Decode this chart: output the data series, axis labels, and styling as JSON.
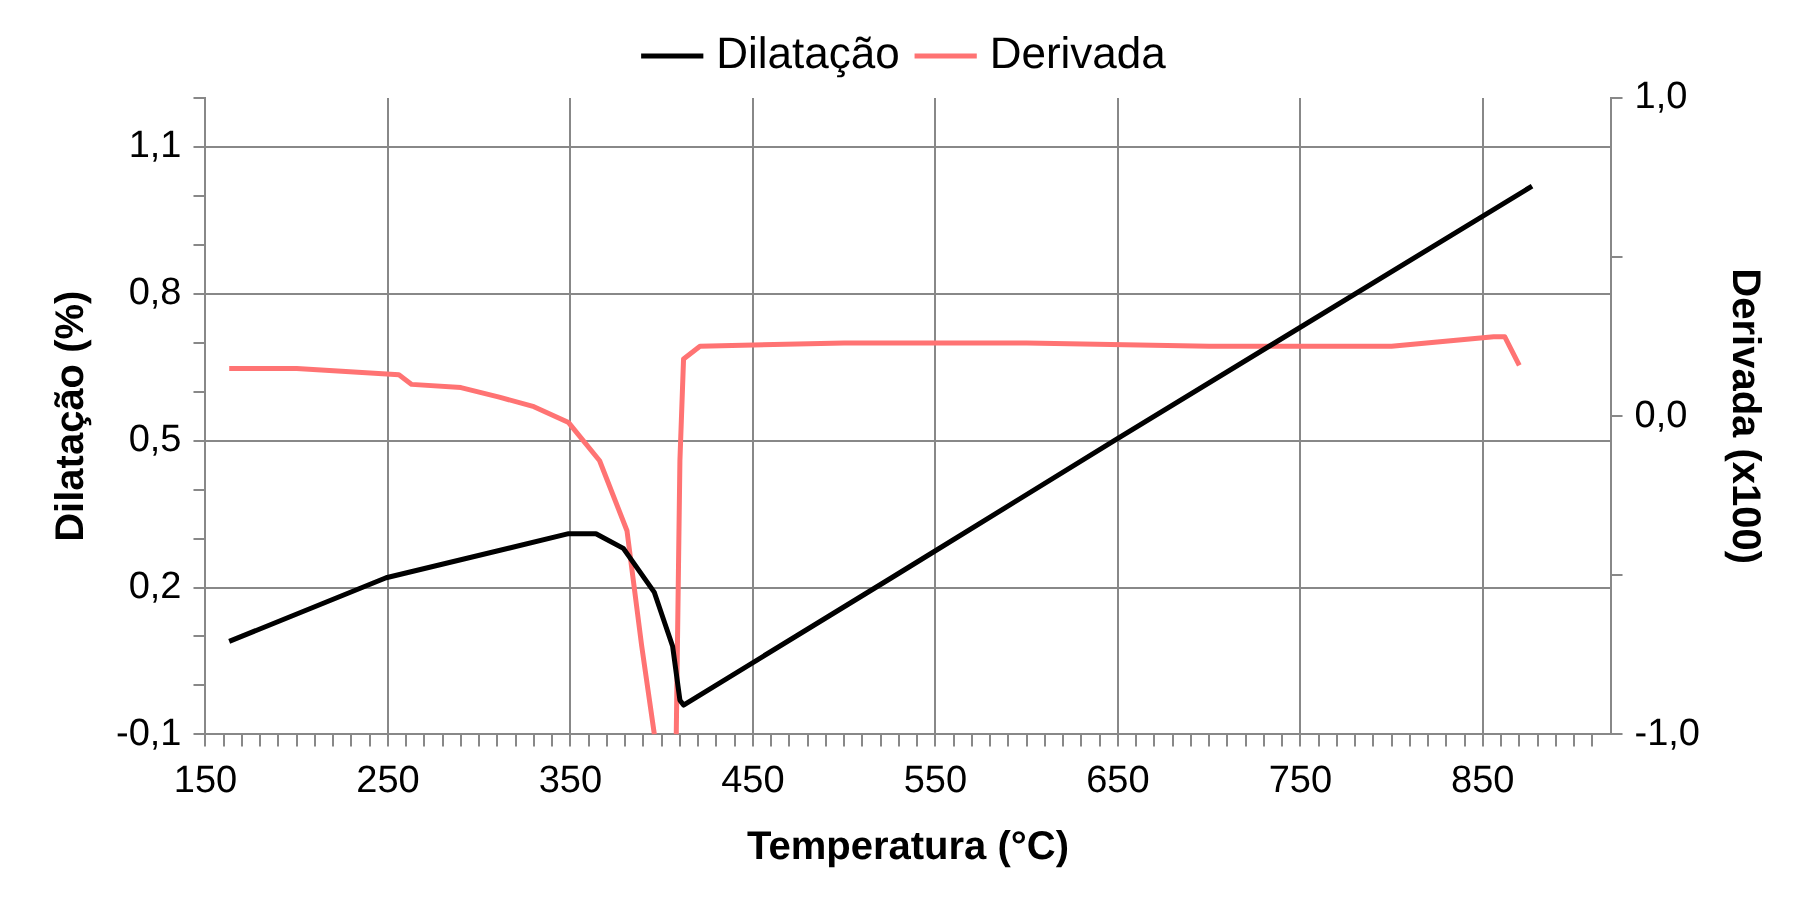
{
  "chart_data": {
    "type": "line",
    "xlabel": "Temperatura (°C)",
    "ylabel": "Dilatação (%)",
    "y2label": "Derivada (x100)",
    "xlim": [
      150,
      920
    ],
    "xticks": [
      150,
      {
        "value": 160,
        "label": null
      },
      {
        "value": 170,
        "label": null
      },
      {
        "value": 180,
        "label": null
      },
      {
        "value": 190,
        "label": null
      },
      {
        "value": 200,
        "label": null
      },
      {
        "value": 210,
        "label": null
      },
      {
        "value": 220,
        "label": null
      },
      {
        "value": 230,
        "label": null
      },
      {
        "value": 240,
        "label": null
      },
      250,
      {
        "value": 260,
        "label": null
      },
      {
        "value": 270,
        "label": null
      },
      {
        "value": 280,
        "label": null
      },
      {
        "value": 290,
        "label": null
      },
      {
        "value": 300,
        "label": null
      },
      {
        "value": 310,
        "label": null
      },
      {
        "value": 320,
        "label": null
      },
      {
        "value": 330,
        "label": null
      },
      {
        "value": 340,
        "label": null
      },
      350,
      {
        "value": 360,
        "label": null
      },
      {
        "value": 370,
        "label": null
      },
      {
        "value": 380,
        "label": null
      },
      {
        "value": 390,
        "label": null
      },
      {
        "value": 400,
        "label": null
      },
      {
        "value": 410,
        "label": null
      },
      {
        "value": 420,
        "label": null
      },
      {
        "value": 430,
        "label": null
      },
      {
        "value": 440,
        "label": null
      },
      450,
      {
        "value": 460,
        "label": null
      },
      {
        "value": 470,
        "label": null
      },
      {
        "value": 480,
        "label": null
      },
      {
        "value": 490,
        "label": null
      },
      {
        "value": 500,
        "label": null
      },
      {
        "value": 510,
        "label": null
      },
      {
        "value": 520,
        "label": null
      },
      {
        "value": 530,
        "label": null
      },
      {
        "value": 540,
        "label": null
      },
      550,
      {
        "value": 560,
        "label": null
      },
      {
        "value": 570,
        "label": null
      },
      {
        "value": 580,
        "label": null
      },
      {
        "value": 590,
        "label": null
      },
      {
        "value": 600,
        "label": null
      },
      {
        "value": 610,
        "label": null
      },
      {
        "value": 620,
        "label": null
      },
      {
        "value": 630,
        "label": null
      },
      {
        "value": 640,
        "label": null
      },
      650,
      {
        "value": 660,
        "label": null
      },
      {
        "value": 670,
        "label": null
      },
      {
        "value": 680,
        "label": null
      },
      {
        "value": 690,
        "label": null
      },
      {
        "value": 700,
        "label": null
      },
      {
        "value": 710,
        "label": null
      },
      {
        "value": 720,
        "label": null
      },
      {
        "value": 730,
        "label": null
      },
      {
        "value": 740,
        "label": null
      },
      750,
      {
        "value": 760,
        "label": null
      },
      {
        "value": 770,
        "label": null
      },
      {
        "value": 780,
        "label": null
      },
      {
        "value": 790,
        "label": null
      },
      {
        "value": 800,
        "label": null
      },
      {
        "value": 810,
        "label": null
      },
      {
        "value": 820,
        "label": null
      },
      {
        "value": 830,
        "label": null
      },
      {
        "value": 840,
        "label": null
      },
      850,
      {
        "value": 860,
        "label": null
      },
      {
        "value": 870,
        "label": null
      },
      {
        "value": 880,
        "label": null
      },
      {
        "value": 890,
        "label": null
      },
      {
        "value": 900,
        "label": null
      },
      {
        "value": 910,
        "label": null
      }
    ],
    "ylim": [
      -0.1,
      1.2
    ],
    "yticks": [
      {
        "value": -0.1,
        "label": "-0,1"
      },
      {
        "value": 0,
        "label": null
      },
      {
        "value": 0.1,
        "label": null
      },
      {
        "value": 0.2,
        "label": "0,2"
      },
      {
        "value": 0.3,
        "label": null
      },
      {
        "value": 0.4,
        "label": null
      },
      {
        "value": 0.5,
        "label": "0,5"
      },
      {
        "value": 0.6,
        "label": null
      },
      {
        "value": 0.7,
        "label": null
      },
      {
        "value": 0.8,
        "label": "0,8"
      },
      {
        "value": 0.9,
        "label": null
      },
      {
        "value": 1.0,
        "label": null
      },
      {
        "value": 1.1,
        "label": "1,1"
      },
      {
        "value": 1.2,
        "label": null
      }
    ],
    "y2lim": [
      -1,
      1
    ],
    "y2ticks": [
      {
        "value": -1,
        "label": "-1,0"
      },
      {
        "value": -0.5,
        "label": null
      },
      {
        "value": 0,
        "label": "0,0"
      },
      {
        "value": 0.5,
        "label": null
      },
      {
        "value": 1,
        "label": "1,0"
      }
    ],
    "grid": true,
    "legend": "top",
    "marker": "none",
    "line_style": "solid",
    "series": [
      {
        "name": "Dilatação",
        "color": "#000000",
        "x": [
          163,
          249,
          349,
          364,
          379,
          396,
          406,
          410,
          412,
          526,
          648,
          877
        ],
        "values": [
          0.09,
          0.22,
          0.31,
          0.31,
          0.28,
          0.19,
          0.08,
          -0.03,
          -0.04,
          0.22,
          0.5,
          1.02
        ]
      },
      {
        "name": "Derivada",
        "color": "#ff7373",
        "axis": "y2",
        "x": [
          163,
          200,
          256,
          263,
          290,
          311,
          330,
          349,
          366,
          381,
          389,
          396,
          null,
          408,
          410,
          412,
          421,
          500,
          600,
          700,
          800,
          856,
          862,
          870
        ],
        "values": [
          0.15,
          0.15,
          0.13,
          0.1,
          0.09,
          0.06,
          0.03,
          -0.02,
          -0.14,
          -0.36,
          -0.72,
          -1.0,
          null,
          -1.0,
          -0.14,
          0.18,
          0.22,
          0.23,
          0.23,
          0.22,
          0.22,
          0.25,
          0.25,
          0.16
        ]
      }
    ]
  }
}
